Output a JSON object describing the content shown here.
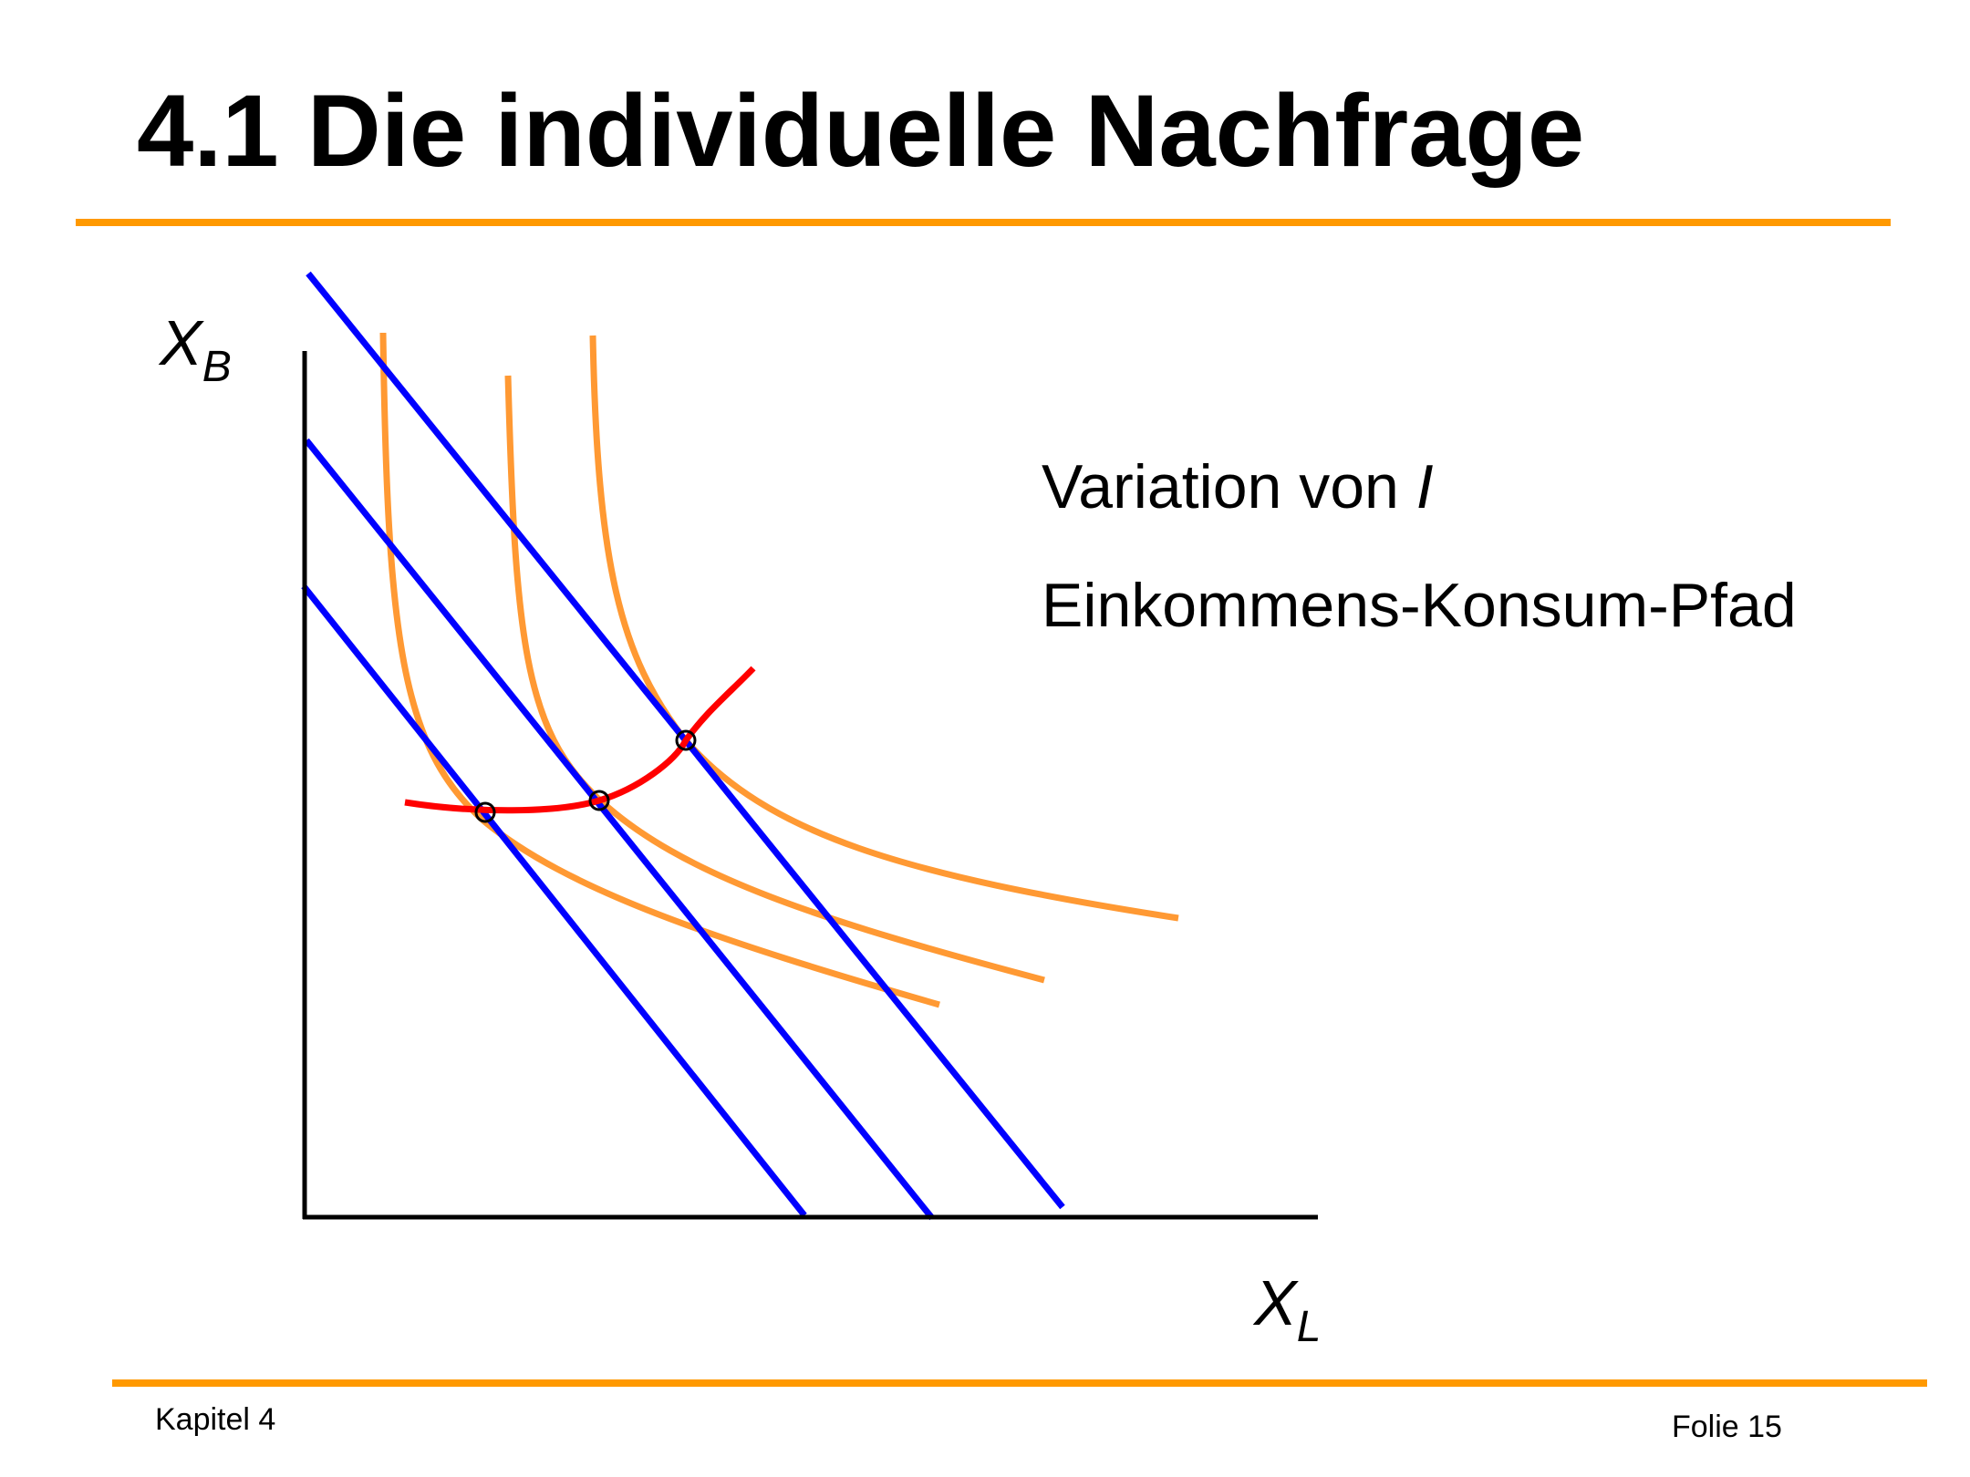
{
  "slide": {
    "title": "4.1 Die individuelle Nachfrage",
    "footer_left": "Kapitel 4",
    "footer_right": "Folie 15"
  },
  "annotations": {
    "variation_prefix": "Variation von ",
    "variation_var": "I",
    "path_label": "Einkommens-Konsum-Pfad"
  },
  "axes": {
    "y_label_main": "X",
    "y_label_sub": "B",
    "x_label_main": "X",
    "x_label_sub": "L"
  },
  "colors": {
    "budget_line": "#0000FF",
    "indifference_curve": "#FF9933",
    "income_consumption_path": "#FF0000",
    "axis": "#000000",
    "rule": "#FF9900"
  }
}
